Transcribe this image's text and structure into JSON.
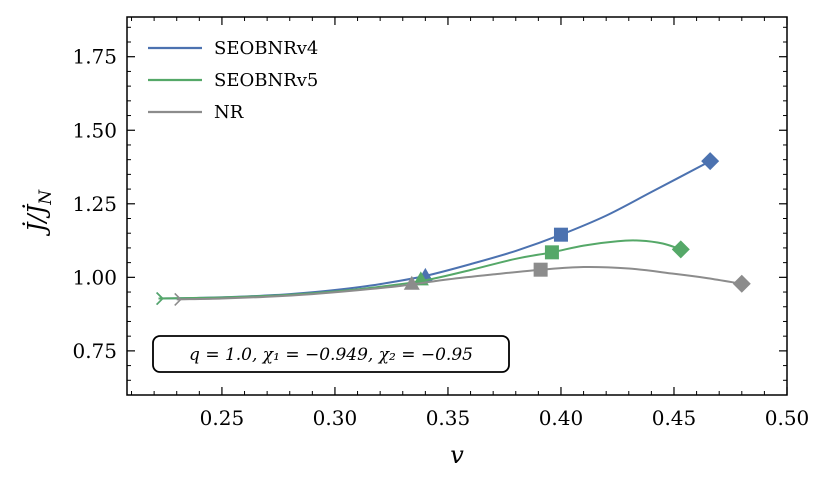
{
  "chart_data": {
    "type": "line",
    "xlabel": "v",
    "ylabel": "J̇/J̇_N",
    "xlim": [
      0.208,
      0.5
    ],
    "ylim": [
      0.6,
      1.885
    ],
    "xticks": [
      0.25,
      0.3,
      0.35,
      0.4,
      0.45,
      0.5
    ],
    "xtick_labels": [
      "0.25",
      "0.30",
      "0.35",
      "0.40",
      "0.45",
      "0.50"
    ],
    "yticks": [
      0.75,
      1.0,
      1.25,
      1.5,
      1.75
    ],
    "ytick_labels": [
      "0.75",
      "1.00",
      "1.25",
      "1.50",
      "1.75"
    ],
    "legend_position": "top-left",
    "annotation": "q = 1.0, χ₁ = −0.949, χ₂ = −0.95",
    "series": [
      {
        "name": "SEOBNRv4",
        "color": "#4c72b0",
        "x": [
          0.222,
          0.24,
          0.26,
          0.28,
          0.3,
          0.32,
          0.34,
          0.36,
          0.38,
          0.4,
          0.42,
          0.44,
          0.466
        ],
        "y": [
          0.928,
          0.93,
          0.935,
          0.943,
          0.957,
          0.977,
          1.005,
          1.045,
          1.09,
          1.145,
          1.21,
          1.29,
          1.395
        ],
        "markers": [
          {
            "x": 0.34,
            "y": 1.005,
            "shape": "triangle"
          },
          {
            "x": 0.4,
            "y": 1.145,
            "shape": "square"
          },
          {
            "x": 0.466,
            "y": 1.395,
            "shape": "diamond"
          }
        ]
      },
      {
        "name": "SEOBNRv5",
        "color": "#55a868",
        "x": [
          0.222,
          0.24,
          0.26,
          0.28,
          0.3,
          0.32,
          0.34,
          0.36,
          0.38,
          0.396,
          0.41,
          0.425,
          0.435,
          0.445,
          0.453
        ],
        "y": [
          0.928,
          0.93,
          0.934,
          0.941,
          0.952,
          0.968,
          0.99,
          1.025,
          1.063,
          1.085,
          1.108,
          1.123,
          1.125,
          1.115,
          1.095
        ],
        "markers": [
          {
            "x": 0.338,
            "y": 0.993,
            "shape": "triangle"
          },
          {
            "x": 0.396,
            "y": 1.085,
            "shape": "square"
          },
          {
            "x": 0.453,
            "y": 1.095,
            "shape": "diamond"
          }
        ]
      },
      {
        "name": "NR",
        "color": "#8c8c8c",
        "x": [
          0.23,
          0.25,
          0.27,
          0.29,
          0.31,
          0.33,
          0.35,
          0.37,
          0.391,
          0.41,
          0.43,
          0.45,
          0.465,
          0.48
        ],
        "y": [
          0.925,
          0.928,
          0.934,
          0.943,
          0.956,
          0.972,
          0.993,
          1.01,
          1.026,
          1.035,
          1.03,
          1.012,
          0.997,
          0.978
        ],
        "markers": [
          {
            "x": 0.334,
            "y": 0.978,
            "shape": "triangle"
          },
          {
            "x": 0.391,
            "y": 1.026,
            "shape": "square"
          },
          {
            "x": 0.48,
            "y": 0.978,
            "shape": "diamond"
          }
        ]
      }
    ]
  }
}
